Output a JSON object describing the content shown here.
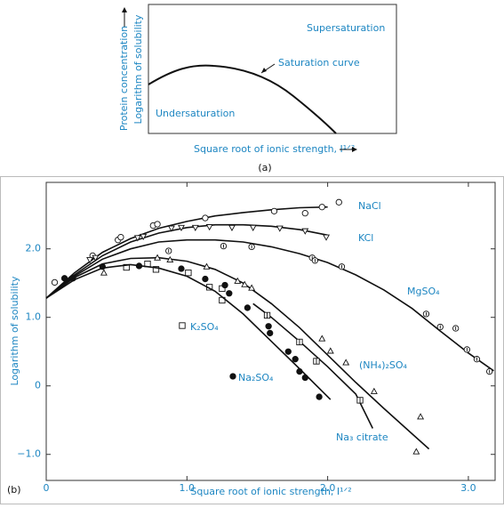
{
  "panel_a": {
    "label": "(a)",
    "y_label_top": "Protein concentration",
    "y_label_bottom": "Logarithm of solubility",
    "x_label": "Square root of ionic strength, I¹ᐟ²",
    "region_above": "Supersaturation",
    "curve_label": "Saturation curve",
    "region_below": "Undersaturation"
  },
  "chart_data": {
    "type": "scatter",
    "panel_label": "(b)",
    "x_label": "Square root of ionic strength, I¹ᐟ²",
    "y_label": "Logarithm of solubility",
    "xlim": [
      0,
      3.19
    ],
    "ylim": [
      -1.38,
      2.97
    ],
    "xticks": [
      0,
      {
        "value": 1,
        "label": "1.0"
      },
      {
        "value": 2,
        "label": "2.0"
      },
      {
        "value": 3,
        "label": "3.0"
      }
    ],
    "yticks": [
      {
        "value": -1,
        "label": "−1.0"
      },
      0,
      {
        "value": 1,
        "label": "1.0"
      },
      {
        "value": 2,
        "label": "2.0"
      }
    ],
    "series": [
      {
        "name": "NaCl",
        "color": "#111111",
        "marker": "circle",
        "x": [
          0.06,
          0.33,
          0.51,
          0.53,
          0.76,
          0.79,
          1.13,
          1.62,
          1.84,
          1.96,
          2.08
        ],
        "y": [
          1.51,
          1.9,
          2.13,
          2.17,
          2.34,
          2.36,
          2.45,
          2.55,
          2.52,
          2.61,
          2.68
        ],
        "curve_x": [
          0,
          0.2,
          0.4,
          0.6,
          0.8,
          1.0,
          1.2,
          1.4,
          1.6,
          1.8,
          2.0
        ],
        "curve_y": [
          1.28,
          1.65,
          1.95,
          2.15,
          2.3,
          2.4,
          2.48,
          2.53,
          2.57,
          2.6,
          2.61
        ]
      },
      {
        "name": "KCl",
        "color": "#111111",
        "marker": "triangle-down",
        "x": [
          0.31,
          0.35,
          0.65,
          0.69,
          0.89,
          0.96,
          1.06,
          1.16,
          1.32,
          1.47,
          1.66,
          1.84,
          1.99
        ],
        "y": [
          1.84,
          1.87,
          2.16,
          2.18,
          2.3,
          2.31,
          2.31,
          2.32,
          2.31,
          2.31,
          2.3,
          2.26,
          2.17
        ],
        "curve_x": [
          0,
          0.2,
          0.4,
          0.6,
          0.8,
          1.0,
          1.2,
          1.4,
          1.6,
          1.8,
          2.0
        ],
        "curve_y": [
          1.28,
          1.62,
          1.9,
          2.1,
          2.23,
          2.31,
          2.35,
          2.35,
          2.33,
          2.28,
          2.2
        ]
      },
      {
        "name": "MgSO₄",
        "color": "#111111",
        "marker": "circle-dot",
        "x": [
          0.87,
          1.26,
          1.46,
          1.89,
          1.91,
          2.1,
          2.7,
          2.8,
          2.91,
          2.99,
          3.06,
          3.15
        ],
        "y": [
          1.97,
          2.04,
          2.03,
          1.87,
          1.83,
          1.74,
          1.05,
          0.86,
          0.84,
          0.53,
          0.39,
          0.21
        ],
        "curve_x": [
          0,
          0.2,
          0.4,
          0.6,
          0.8,
          1.0,
          1.2,
          1.4,
          1.6,
          1.8,
          2.0,
          2.2,
          2.4,
          2.6,
          2.8,
          3.0,
          3.18
        ],
        "curve_y": [
          1.28,
          1.6,
          1.85,
          2.0,
          2.1,
          2.13,
          2.13,
          2.1,
          2.03,
          1.93,
          1.8,
          1.62,
          1.4,
          1.13,
          0.8,
          0.48,
          0.22
        ]
      },
      {
        "name": "(NH₄)₂SO₄",
        "color": "#111111",
        "marker": "triangle-up",
        "x": [
          0.41,
          0.79,
          0.88,
          1.14,
          1.36,
          1.41,
          1.46,
          1.96,
          2.02,
          2.13,
          2.33,
          2.66,
          2.63
        ],
        "y": [
          1.65,
          1.87,
          1.84,
          1.74,
          1.53,
          1.48,
          1.43,
          0.69,
          0.51,
          0.34,
          -0.08,
          -0.45,
          -0.96
        ],
        "curve_x": [
          0,
          0.2,
          0.4,
          0.6,
          0.8,
          1.0,
          1.2,
          1.4,
          1.6,
          1.8,
          2.0,
          2.2,
          2.4,
          2.6,
          2.72
        ],
        "curve_y": [
          1.28,
          1.58,
          1.78,
          1.86,
          1.87,
          1.82,
          1.7,
          1.5,
          1.2,
          0.85,
          0.45,
          0.05,
          -0.33,
          -0.7,
          -0.92
        ]
      },
      {
        "name": "K₂SO₄",
        "color": "#111111",
        "marker": "square",
        "x": [
          0.57,
          0.72,
          0.78,
          1.01,
          1.16,
          1.25,
          1.25
        ],
        "y": [
          1.73,
          1.78,
          1.7,
          1.65,
          1.44,
          1.42,
          1.25
        ]
      },
      {
        "name": "Na₂SO₄",
        "color": "#111111",
        "marker": "filled-circle",
        "x": [
          0.13,
          0.19,
          0.4,
          0.66,
          0.96,
          1.13,
          1.27,
          1.3,
          1.43,
          1.58,
          1.59,
          1.72,
          1.77,
          1.8,
          1.84,
          1.94
        ],
        "y": [
          1.57,
          1.57,
          1.74,
          1.75,
          1.71,
          1.56,
          1.47,
          1.35,
          1.14,
          0.87,
          0.77,
          0.5,
          0.39,
          0.21,
          0.12,
          -0.16
        ],
        "curve_x": [
          0,
          0.2,
          0.4,
          0.6,
          0.8,
          1.0,
          1.2,
          1.4,
          1.6,
          1.8,
          2.02
        ],
        "curve_y": [
          1.28,
          1.55,
          1.72,
          1.77,
          1.72,
          1.6,
          1.38,
          1.05,
          0.65,
          0.25,
          -0.2
        ]
      },
      {
        "name": "Na₃ citrate",
        "color": "#111111",
        "marker": "square-cross",
        "x": [
          1.57,
          1.8,
          1.92,
          2.23
        ],
        "y": [
          1.03,
          0.64,
          0.36,
          -0.21
        ],
        "curve_x": [
          1.47,
          1.6,
          1.8,
          2.0,
          2.2,
          2.32
        ],
        "curve_y": [
          1.2,
          1.0,
          0.65,
          0.28,
          -0.12,
          -0.62
        ]
      }
    ]
  }
}
